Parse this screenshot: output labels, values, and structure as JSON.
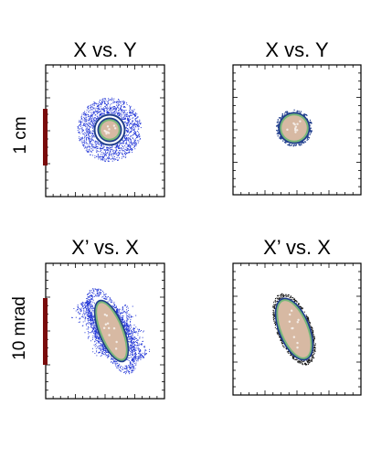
{
  "chart_data": [
    {
      "type": "scatter",
      "title": "X vs. Y",
      "row_label": "1 cm",
      "distribution": "halo-ring",
      "core_colors": [
        "#d7b9a3",
        "#78b77a",
        "#1f3d8c"
      ],
      "halo_color": "#1e32d6",
      "grid": false
    },
    {
      "type": "scatter",
      "title": "X vs. Y",
      "distribution": "compact-core",
      "core_colors": [
        "#d7b9a3",
        "#78b77a",
        "#1f3d8c"
      ],
      "halo_color": "#1e32d6",
      "grid": false
    },
    {
      "type": "scatter",
      "title": "X’ vs. X",
      "row_label": "10 mrad",
      "distribution": "halo-wings",
      "core_colors": [
        "#d7b9a3",
        "#78b77a",
        "#1f3d8c"
      ],
      "halo_color": "#1e32d6",
      "grid": false
    },
    {
      "type": "scatter",
      "title": "X’ vs. X",
      "distribution": "compact-ellipse",
      "core_colors": [
        "#d7b9a3",
        "#78b77a",
        "#1f3d8c"
      ],
      "halo_color": "#1e32d6",
      "grid": false
    }
  ],
  "scale_bar_color": "#7a0c0c"
}
